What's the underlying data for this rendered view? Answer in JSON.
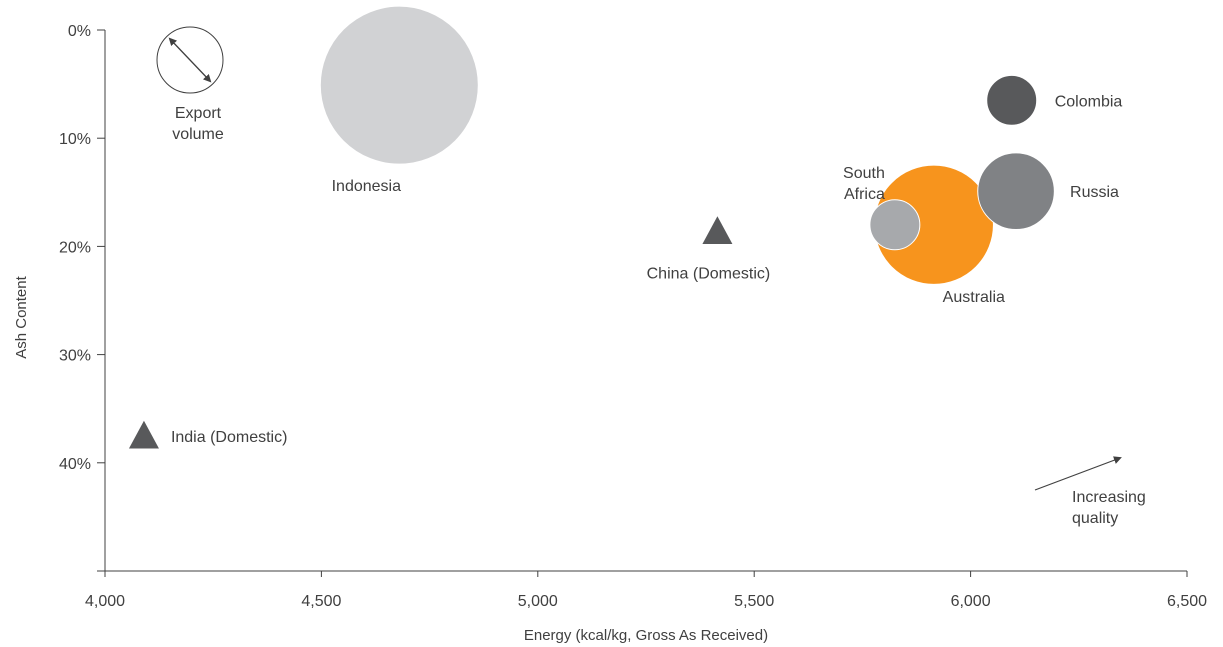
{
  "chart_data": {
    "type": "scatter",
    "title": "",
    "xlabel": "Energy (kcal/kg, Gross As Received)",
    "ylabel": "Ash Content",
    "xlim": [
      4000,
      6500
    ],
    "ylim": [
      0,
      0.5
    ],
    "y_inverted": true,
    "x_ticks": [
      4000,
      4500,
      5000,
      5500,
      6000,
      6500
    ],
    "x_tick_labels": [
      "4,000",
      "4,500",
      "5,000",
      "5,500",
      "6,000",
      "6,500"
    ],
    "y_ticks": [
      0,
      0.1,
      0.2,
      0.3,
      0.4
    ],
    "y_tick_labels": [
      "0%",
      "10%",
      "20%",
      "30%",
      "40%"
    ],
    "grid": false,
    "size_legend": {
      "label_line1": "Export",
      "label_line2": "volume"
    },
    "annotation": {
      "line1": "Increasing",
      "line2": "quality"
    },
    "points": [
      {
        "name": "Indonesia",
        "label_lines": [
          "Indonesia"
        ],
        "x": 4680,
        "y": 0.051,
        "relative_volume": 1.0,
        "marker": "bubble",
        "color": "#d1d2d4"
      },
      {
        "name": "Australia",
        "label_lines": [
          "Australia"
        ],
        "x": 5915,
        "y": 0.18,
        "relative_volume": 0.57,
        "marker": "bubble",
        "color": "#f7941d"
      },
      {
        "name": "Russia",
        "label_lines": [
          "Russia"
        ],
        "x": 6105,
        "y": 0.149,
        "relative_volume": 0.235,
        "marker": "bubble",
        "color": "#808285"
      },
      {
        "name": "Colombia",
        "label_lines": [
          "Colombia"
        ],
        "x": 6095,
        "y": 0.065,
        "relative_volume": 0.1,
        "marker": "bubble",
        "color": "#58595b"
      },
      {
        "name": "South Africa",
        "label_lines": [
          "South",
          "Africa"
        ],
        "x": 5825,
        "y": 0.18,
        "relative_volume": 0.1,
        "marker": "bubble",
        "color": "#a7a9ac"
      },
      {
        "name": "China (Domestic)",
        "label_lines": [
          "China (Domestic)"
        ],
        "x": 5415,
        "y": 0.186,
        "marker": "triangle",
        "color": "#58595b"
      },
      {
        "name": "India (Domestic)",
        "label_lines": [
          "India (Domestic)"
        ],
        "x": 4090,
        "y": 0.375,
        "marker": "triangle",
        "color": "#58595b"
      }
    ]
  }
}
